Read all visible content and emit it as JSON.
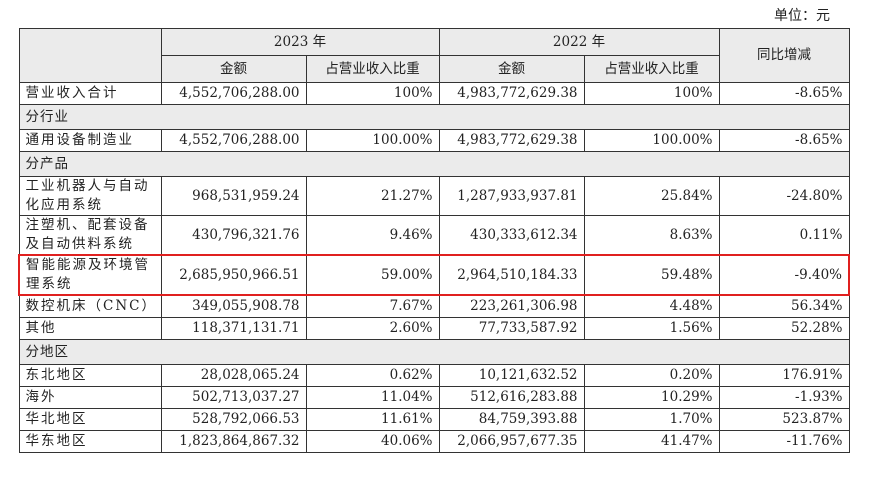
{
  "unit": "单位：元",
  "header": {
    "year_2023": "2023 年",
    "year_2022": "2022 年",
    "amount_2023": "金额",
    "ratio_2023": "占营业收入比重",
    "amount_2022": "金额",
    "ratio_2022": "占营业收入比重",
    "yoy": "同比增减"
  },
  "table": {
    "rows": [
      {
        "label": "营业收入合计",
        "cells": [
          "4,552,706,288.00",
          "100%",
          "4,983,772,629.38",
          "100%",
          "-8.65%"
        ]
      },
      {
        "section": "分行业"
      },
      {
        "label": "通用设备制造业",
        "cells": [
          "4,552,706,288.00",
          "100.00%",
          "4,983,772,629.38",
          "100.00%",
          "-8.65%"
        ]
      },
      {
        "section": "分产品"
      },
      {
        "label": "工业机器人与自动化应用系统",
        "cells": [
          "968,531,959.24",
          "21.27%",
          "1,287,933,937.81",
          "25.84%",
          "-24.80%"
        ]
      },
      {
        "label": "注塑机、配套设备及自动供料系统",
        "cells": [
          "430,796,321.76",
          "9.46%",
          "430,333,612.34",
          "8.63%",
          "0.11%"
        ]
      },
      {
        "label": "智能能源及环境管理系统",
        "cells": [
          "2,685,950,966.51",
          "59.00%",
          "2,964,510,184.33",
          "59.48%",
          "-9.40%"
        ],
        "highlighted": true
      },
      {
        "label": "数控机床（CNC）",
        "cells": [
          "349,055,908.78",
          "7.67%",
          "223,261,306.98",
          "4.48%",
          "56.34%"
        ]
      },
      {
        "label": "其他",
        "cells": [
          "118,371,131.71",
          "2.60%",
          "77,733,587.92",
          "1.56%",
          "52.28%"
        ]
      },
      {
        "section": "分地区"
      },
      {
        "label": "东北地区",
        "cells": [
          "28,028,065.24",
          "0.62%",
          "10,121,632.52",
          "0.20%",
          "176.91%"
        ]
      },
      {
        "label": "海外",
        "cells": [
          "502,713,037.27",
          "11.04%",
          "512,616,283.88",
          "10.29%",
          "-1.93%"
        ]
      },
      {
        "label": "华北地区",
        "cells": [
          "528,792,066.53",
          "11.61%",
          "84,759,393.88",
          "1.70%",
          "523.87%"
        ]
      },
      {
        "label": "华东地区",
        "cells": [
          "1,823,864,867.32",
          "40.06%",
          "2,066,957,677.35",
          "41.47%",
          "-11.76%"
        ]
      }
    ]
  }
}
